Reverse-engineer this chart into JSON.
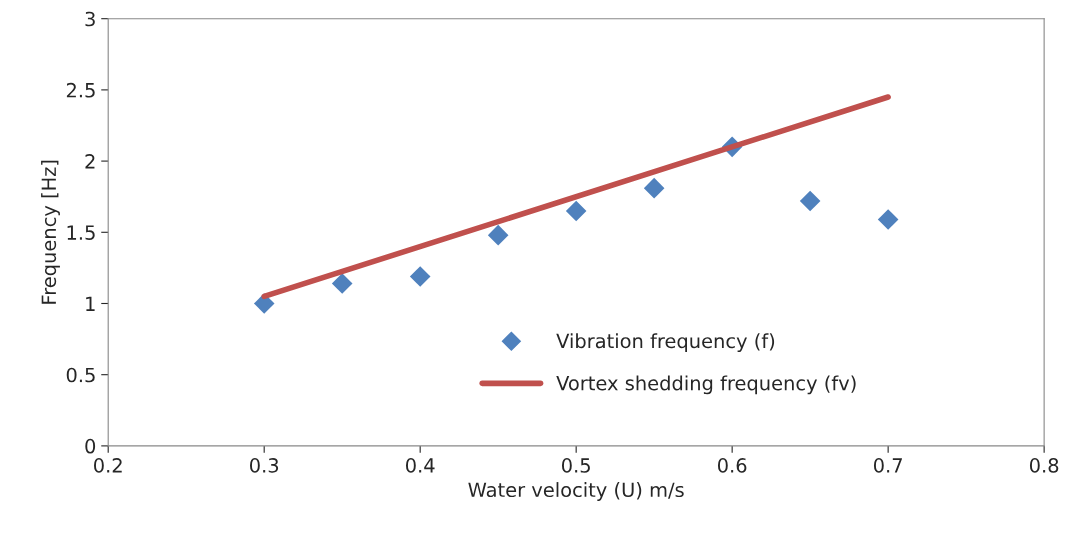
{
  "chart_data": {
    "type": "scatter",
    "xlabel": "Water velocity (U) m/s",
    "ylabel": "Frequency [Hz]",
    "series": [
      {
        "name": "Vibration frequency (f)",
        "color": "#4f81bd",
        "marker": "diamond",
        "x": [
          0.3,
          0.35,
          0.4,
          0.45,
          0.5,
          0.55,
          0.6,
          0.65,
          0.7
        ],
        "values": [
          1.0,
          1.14,
          1.19,
          1.48,
          1.65,
          1.81,
          2.1,
          1.72,
          1.59
        ]
      },
      {
        "name": "Vortex shedding frequency (fv)",
        "type": "line",
        "color": "#c0504d",
        "marker": "none",
        "line_style": "solid",
        "x": [
          0.3,
          0.7
        ],
        "values": [
          1.05,
          2.45
        ]
      }
    ],
    "xlim": [
      0.2,
      0.8
    ],
    "xticks": [
      {
        "value": 0.2,
        "label": "0.2"
      },
      {
        "value": 0.3,
        "label": "0.3"
      },
      {
        "value": 0.4,
        "label": "0.4"
      },
      {
        "value": 0.5,
        "label": "0.5"
      },
      {
        "value": 0.6,
        "label": "0.6"
      },
      {
        "value": 0.7,
        "label": "0.7"
      },
      {
        "value": 0.8,
        "label": "0.8"
      }
    ],
    "ylim": [
      0,
      3
    ],
    "yticks": [
      0,
      {
        "value": 0.5,
        "label": "0.5"
      },
      1,
      {
        "value": 1.5,
        "label": "1.5"
      },
      2,
      {
        "value": 2.5,
        "label": "2.5"
      },
      3
    ],
    "grid": false,
    "legend": "bottom"
  }
}
